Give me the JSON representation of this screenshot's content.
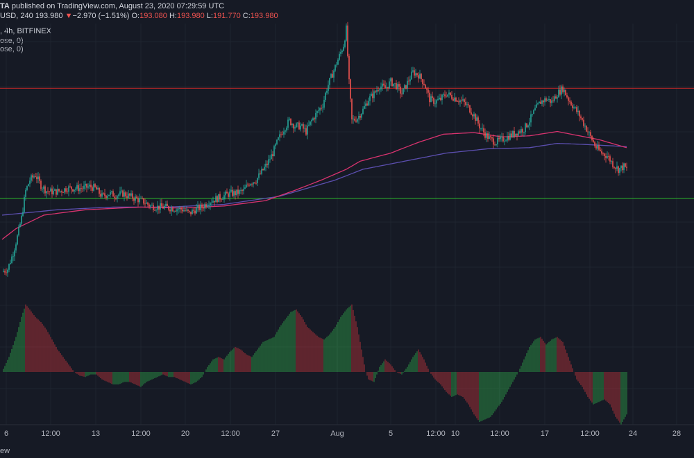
{
  "header": {
    "author_fragment": "TA",
    "published_text": "published on TradingView.com, August 23, 2020 07:29:59 UTC",
    "symbol_fragment": "USD, 240",
    "price": "193.980",
    "arrow": "▼",
    "change": "−2.970 (−1.51%)",
    "o_label": "O:",
    "o_value": "193.080",
    "h_label": "H:",
    "h_value": "193.980",
    "l_label": "L:",
    "l_value": "191.770",
    "c_label": "C:",
    "c_value": "193.980",
    "line3": ", 4h, BITFINEX",
    "line4": "ose, 0)",
    "line5": "ose, 0)"
  },
  "footer": {
    "text": "ew"
  },
  "colors": {
    "background": "#161a25",
    "up": "#26a69a",
    "down": "#ef5350",
    "resistance": "#c62828",
    "support": "#2ebd2e",
    "ma_fast": "#d9336f",
    "ma_slow": "#5c4fb0",
    "hist_up": "#2e9e48",
    "hist_down": "#b8343b",
    "grid": "#1f2430"
  },
  "chart_data": {
    "type": "candlestick",
    "symbol": "BITFINEX",
    "timeframe": "4h",
    "y_range": [
      165,
      214
    ],
    "x_tick_labels": [
      "6",
      "12:00",
      "13",
      "12:00",
      "20",
      "12:00",
      "27",
      "Aug",
      "5",
      "12:00",
      "10",
      "12:00",
      "17",
      "12:00",
      "24",
      "28"
    ],
    "horizontal_levels": [
      {
        "value": 202.0,
        "color": "#c62828"
      },
      {
        "value": 181.6,
        "color": "#2ebd2e"
      }
    ],
    "close_path": [
      [
        0,
        168
      ],
      [
        4,
        168.5
      ],
      [
        8,
        171.5
      ],
      [
        11,
        174.5
      ],
      [
        14,
        178
      ],
      [
        17,
        183
      ],
      [
        20,
        185
      ],
      [
        24,
        186
      ],
      [
        28,
        184
      ],
      [
        32,
        183
      ],
      [
        37,
        182.8
      ],
      [
        42,
        183
      ],
      [
        47,
        183.5
      ],
      [
        52,
        183.5
      ],
      [
        58,
        183.5
      ],
      [
        63,
        183.8
      ],
      [
        67,
        183.5
      ],
      [
        72,
        182
      ],
      [
        77,
        182.5
      ],
      [
        82,
        182.2
      ],
      [
        87,
        182.5
      ],
      [
        92,
        182
      ],
      [
        97,
        181.5
      ],
      [
        102,
        181
      ],
      [
        107,
        180.2
      ],
      [
        112,
        180
      ],
      [
        117,
        180
      ],
      [
        122,
        179.8
      ],
      [
        127,
        179.7
      ],
      [
        131,
        179.5
      ],
      [
        135,
        178.8
      ],
      [
        139,
        179.5
      ],
      [
        144,
        180
      ],
      [
        149,
        181
      ],
      [
        154,
        181.5
      ],
      [
        159,
        182
      ],
      [
        164,
        182.5
      ],
      [
        169,
        182.6
      ],
      [
        174,
        183
      ],
      [
        178,
        184.5
      ],
      [
        183,
        185
      ],
      [
        187,
        186.5
      ],
      [
        191,
        188
      ],
      [
        195,
        190
      ],
      [
        199,
        192.5
      ],
      [
        203,
        194.5
      ],
      [
        207,
        196
      ],
      [
        211,
        195
      ],
      [
        215,
        195
      ],
      [
        219,
        194
      ],
      [
        223,
        196
      ],
      [
        227,
        197.5
      ],
      [
        231,
        199
      ],
      [
        234,
        202
      ],
      [
        237,
        204
      ],
      [
        240,
        206
      ],
      [
        243,
        208
      ],
      [
        246,
        210
      ],
      [
        248,
        213
      ],
      [
        250,
        203
      ],
      [
        252,
        196
      ],
      [
        256,
        196.5
      ],
      [
        260,
        198
      ],
      [
        264,
        200
      ],
      [
        268,
        201
      ],
      [
        272,
        202.5
      ],
      [
        276,
        202
      ],
      [
        280,
        203.2
      ],
      [
        284,
        202.5
      ],
      [
        288,
        201
      ],
      [
        292,
        203
      ],
      [
        296,
        205
      ],
      [
        300,
        204.5
      ],
      [
        304,
        203
      ],
      [
        308,
        200
      ],
      [
        312,
        199.5
      ],
      [
        316,
        200
      ],
      [
        320,
        201
      ],
      [
        324,
        200.5
      ],
      [
        328,
        200
      ],
      [
        332,
        199.5
      ],
      [
        336,
        198.5
      ],
      [
        340,
        197
      ],
      [
        344,
        195
      ],
      [
        348,
        193.5
      ],
      [
        352,
        192.5
      ],
      [
        356,
        192
      ],
      [
        360,
        192.5
      ],
      [
        364,
        193
      ],
      [
        368,
        193.5
      ],
      [
        372,
        194
      ],
      [
        376,
        194.5
      ],
      [
        380,
        196
      ],
      [
        384,
        198
      ],
      [
        388,
        199.5
      ],
      [
        392,
        200
      ],
      [
        396,
        199.5
      ],
      [
        400,
        201
      ],
      [
        404,
        202
      ],
      [
        408,
        200
      ],
      [
        412,
        198.5
      ],
      [
        416,
        197
      ],
      [
        420,
        195
      ],
      [
        424,
        193
      ],
      [
        428,
        191
      ],
      [
        432,
        190
      ],
      [
        436,
        189.5
      ],
      [
        440,
        188
      ],
      [
        444,
        187
      ],
      [
        448,
        187.5
      ],
      [
        450,
        187
      ]
    ],
    "ma_fast_path": [
      [
        0,
        174
      ],
      [
        10,
        176
      ],
      [
        30,
        178.5
      ],
      [
        60,
        179.5
      ],
      [
        100,
        180
      ],
      [
        130,
        179.8
      ],
      [
        160,
        180.2
      ],
      [
        190,
        181.2
      ],
      [
        210,
        183
      ],
      [
        230,
        185
      ],
      [
        248,
        187
      ],
      [
        258,
        188.5
      ],
      [
        280,
        190
      ],
      [
        300,
        192
      ],
      [
        318,
        193.5
      ],
      [
        340,
        193.8
      ],
      [
        360,
        193
      ],
      [
        380,
        193.2
      ],
      [
        400,
        194
      ],
      [
        410,
        193.5
      ],
      [
        430,
        192.5
      ],
      [
        450,
        191
      ]
    ],
    "ma_slow_path": [
      [
        0,
        178.5
      ],
      [
        40,
        179.5
      ],
      [
        80,
        180
      ],
      [
        120,
        180
      ],
      [
        160,
        180.5
      ],
      [
        200,
        182
      ],
      [
        240,
        185
      ],
      [
        260,
        187
      ],
      [
        290,
        188.5
      ],
      [
        320,
        190
      ],
      [
        350,
        190.8
      ],
      [
        380,
        191
      ],
      [
        400,
        191.8
      ],
      [
        420,
        191.6
      ],
      [
        450,
        191.2
      ]
    ],
    "histogram_path": [
      [
        0,
        0
      ],
      [
        5,
        6
      ],
      [
        10,
        14
      ],
      [
        14,
        22
      ],
      [
        17,
        27
      ],
      [
        20,
        25
      ],
      [
        24,
        22
      ],
      [
        28,
        20
      ],
      [
        32,
        17
      ],
      [
        36,
        13
      ],
      [
        40,
        9
      ],
      [
        44,
        6
      ],
      [
        48,
        3
      ],
      [
        52,
        0
      ],
      [
        56,
        -1.5
      ],
      [
        60,
        -2
      ],
      [
        64,
        -1
      ],
      [
        68,
        -1
      ],
      [
        72,
        -3
      ],
      [
        76,
        -4
      ],
      [
        80,
        -5
      ],
      [
        84,
        -5
      ],
      [
        88,
        -4
      ],
      [
        92,
        -4
      ],
      [
        96,
        -5
      ],
      [
        100,
        -6
      ],
      [
        104,
        -4
      ],
      [
        108,
        -3
      ],
      [
        112,
        -2
      ],
      [
        116,
        -1
      ],
      [
        120,
        -2
      ],
      [
        124,
        -2
      ],
      [
        128,
        -3
      ],
      [
        132,
        -4
      ],
      [
        136,
        -5
      ],
      [
        140,
        -4
      ],
      [
        144,
        -2
      ],
      [
        148,
        2
      ],
      [
        152,
        5
      ],
      [
        156,
        6
      ],
      [
        160,
        5
      ],
      [
        164,
        8
      ],
      [
        168,
        10
      ],
      [
        172,
        9
      ],
      [
        176,
        7
      ],
      [
        180,
        6
      ],
      [
        184,
        9
      ],
      [
        188,
        12
      ],
      [
        192,
        13
      ],
      [
        196,
        14
      ],
      [
        200,
        18
      ],
      [
        204,
        21
      ],
      [
        208,
        24
      ],
      [
        212,
        25
      ],
      [
        216,
        22
      ],
      [
        220,
        18
      ],
      [
        224,
        16
      ],
      [
        228,
        14
      ],
      [
        232,
        13
      ],
      [
        236,
        15
      ],
      [
        240,
        18
      ],
      [
        244,
        22
      ],
      [
        248,
        25
      ],
      [
        252,
        27
      ],
      [
        256,
        18
      ],
      [
        260,
        6
      ],
      [
        262,
        0
      ],
      [
        264,
        -3
      ],
      [
        268,
        -4
      ],
      [
        272,
        2
      ],
      [
        276,
        5
      ],
      [
        280,
        3
      ],
      [
        284,
        0
      ],
      [
        288,
        -1
      ],
      [
        292,
        2
      ],
      [
        296,
        6
      ],
      [
        300,
        9
      ],
      [
        304,
        5
      ],
      [
        308,
        0
      ],
      [
        312,
        -3
      ],
      [
        316,
        -5
      ],
      [
        320,
        -8
      ],
      [
        324,
        -10
      ],
      [
        328,
        -9
      ],
      [
        332,
        -10
      ],
      [
        336,
        -13
      ],
      [
        340,
        -17
      ],
      [
        344,
        -20
      ],
      [
        348,
        -19
      ],
      [
        352,
        -18
      ],
      [
        356,
        -15
      ],
      [
        360,
        -12
      ],
      [
        364,
        -8
      ],
      [
        368,
        -4
      ],
      [
        372,
        0
      ],
      [
        376,
        5
      ],
      [
        380,
        10
      ],
      [
        384,
        13
      ],
      [
        388,
        14
      ],
      [
        392,
        11
      ],
      [
        396,
        13
      ],
      [
        400,
        14
      ],
      [
        404,
        12
      ],
      [
        408,
        6
      ],
      [
        412,
        0
      ],
      [
        414,
        -3
      ],
      [
        418,
        -6
      ],
      [
        422,
        -10
      ],
      [
        426,
        -13
      ],
      [
        430,
        -12
      ],
      [
        434,
        -11
      ],
      [
        438,
        -13
      ],
      [
        442,
        -18
      ],
      [
        446,
        -21
      ],
      [
        450,
        -17
      ]
    ]
  }
}
